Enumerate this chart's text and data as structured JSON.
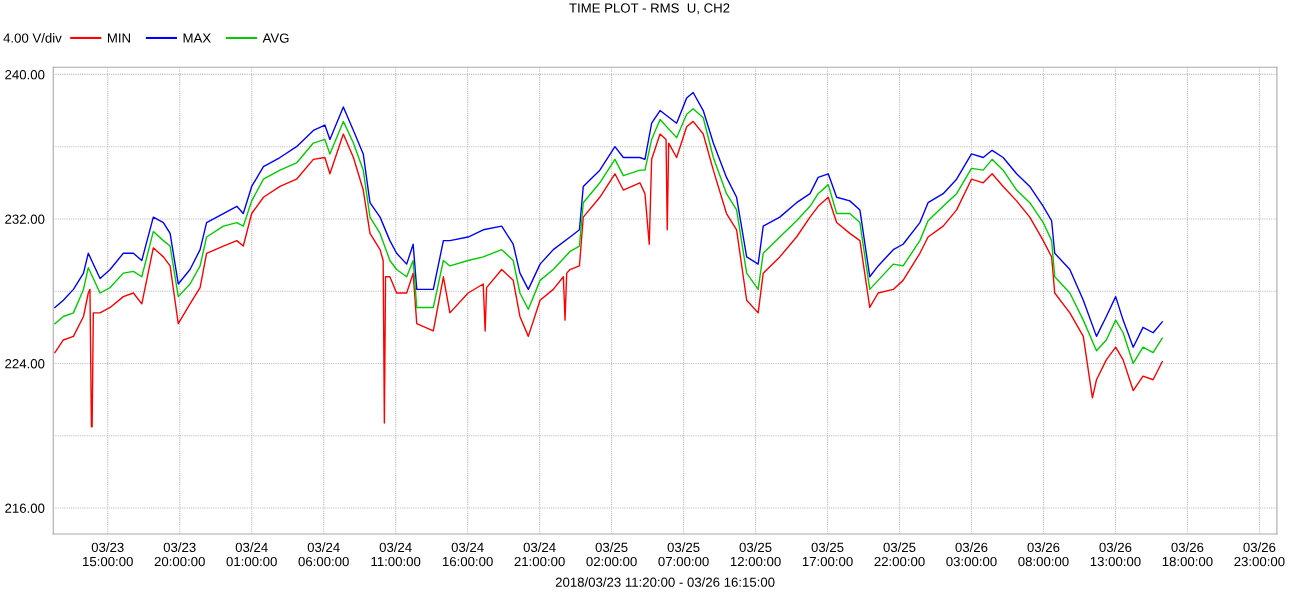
{
  "chart_data": {
    "type": "line",
    "title": "TIME PLOT - RMS  U, CH2",
    "xlabel": "2018/03/23 11:20:00 - 03/26 16:15:00",
    "annotations": [
      "4.00 V/div"
    ],
    "x": [
      "2018-03-23T11:20",
      "2018-03-23T11:55",
      "2018-03-23T12:37",
      "2018-03-23T13:19",
      "2018-03-23T13:39",
      "2018-03-23T14:28",
      "2018-03-23T15:10",
      "2018-03-23T16:05",
      "2018-03-23T16:47",
      "2018-03-23T17:22",
      "2018-03-23T18:10",
      "2018-03-23T18:52",
      "2018-03-23T19:20",
      "2018-03-23T19:54",
      "2018-03-23T20:43",
      "2018-03-23T21:25",
      "2018-03-23T21:52",
      "2018-03-23T23:02",
      "2018-03-23T23:58",
      "2018-03-24T00:25",
      "2018-03-24T01:00",
      "2018-03-24T01:49",
      "2018-03-24T02:58",
      "2018-03-24T04:07",
      "2018-03-24T05:17",
      "2018-03-24T06:05",
      "2018-03-24T06:26",
      "2018-03-24T07:22",
      "2018-03-24T08:04",
      "2018-03-24T08:45",
      "2018-03-24T09:13",
      "2018-03-24T09:55",
      "2018-03-24T10:36",
      "2018-03-24T11:04",
      "2018-03-24T11:46",
      "2018-03-24T12:13",
      "2018-03-24T12:28",
      "2018-03-24T13:37",
      "2018-03-24T14:19",
      "2018-03-24T14:46",
      "2018-03-24T16:02",
      "2018-03-24T17:05",
      "2018-03-24T18:22",
      "2018-03-24T19:10",
      "2018-03-24T19:38",
      "2018-03-24T20:13",
      "2018-03-24T21:02",
      "2018-03-24T21:57",
      "2018-03-24T23:07",
      "2018-03-24T23:46",
      "2018-03-25T00:02",
      "2018-03-25T01:11",
      "2018-03-25T02:14",
      "2018-03-25T02:49",
      "2018-03-25T03:58",
      "2018-03-25T04:19",
      "2018-03-25T04:47",
      "2018-03-25T05:22",
      "2018-03-25T06:31",
      "2018-03-25T07:13",
      "2018-03-25T07:40",
      "2018-03-25T08:22",
      "2018-03-25T09:04",
      "2018-03-25T09:59",
      "2018-03-25T10:41",
      "2018-03-25T11:23",
      "2018-03-25T12:11",
      "2018-03-25T12:32",
      "2018-03-25T13:41",
      "2018-03-25T14:51",
      "2018-03-25T15:47",
      "2018-03-25T16:21",
      "2018-03-25T17:03",
      "2018-03-25T17:38",
      "2018-03-25T18:33",
      "2018-03-25T19:15",
      "2018-03-25T19:56",
      "2018-03-25T20:31",
      "2018-03-25T21:34",
      "2018-03-25T22:15",
      "2018-03-25T23:25",
      "2018-03-25T23:59",
      "2018-03-26T01:02",
      "2018-03-26T01:58",
      "2018-03-26T03:00",
      "2018-03-26T03:49",
      "2018-03-26T04:26",
      "2018-03-26T05:12",
      "2018-03-26T06:08",
      "2018-03-26T07:03",
      "2018-03-26T07:59",
      "2018-03-26T08:34",
      "2018-03-26T08:47",
      "2018-03-26T09:50",
      "2018-03-26T10:46",
      "2018-03-26T11:41",
      "2018-03-26T12:22",
      "2018-03-26T13:01",
      "2018-03-26T13:32",
      "2018-03-26T14:14",
      "2018-03-26T14:55",
      "2018-03-26T15:37",
      "2018-03-26T16:15"
    ],
    "series": [
      {
        "name": "MIN",
        "color": "#ff0000",
        "x": [
          "2018-03-23T11:20",
          "2018-03-23T11:55",
          "2018-03-23T12:37",
          "2018-03-23T13:19",
          "2018-03-23T13:39",
          "2018-03-23T13:46",
          "2018-03-23T13:52",
          "2018-03-23T13:55",
          "2018-03-23T14:00",
          "2018-03-23T14:28",
          "2018-03-23T15:10",
          "2018-03-23T16:05",
          "2018-03-23T16:47",
          "2018-03-23T17:22",
          "2018-03-23T18:10",
          "2018-03-23T18:52",
          "2018-03-23T19:20",
          "2018-03-23T19:54",
          "2018-03-23T20:43",
          "2018-03-23T21:25",
          "2018-03-23T21:52",
          "2018-03-23T23:02",
          "2018-03-23T23:58",
          "2018-03-24T00:25",
          "2018-03-24T01:00",
          "2018-03-24T01:49",
          "2018-03-24T02:58",
          "2018-03-24T04:07",
          "2018-03-24T05:17",
          "2018-03-24T06:05",
          "2018-03-24T06:26",
          "2018-03-24T07:22",
          "2018-03-24T08:04",
          "2018-03-24T08:45",
          "2018-03-24T09:13",
          "2018-03-24T09:55",
          "2018-03-24T10:08",
          "2018-03-24T10:13",
          "2018-03-24T10:18",
          "2018-03-24T10:36",
          "2018-03-24T11:04",
          "2018-03-24T11:46",
          "2018-03-24T12:13",
          "2018-03-24T12:28",
          "2018-03-24T13:37",
          "2018-03-24T14:19",
          "2018-03-24T14:46",
          "2018-03-24T16:02",
          "2018-03-24T17:05",
          "2018-03-24T17:13",
          "2018-03-24T17:19",
          "2018-03-24T18:22",
          "2018-03-24T19:10",
          "2018-03-24T19:38",
          "2018-03-24T20:13",
          "2018-03-24T21:02",
          "2018-03-24T21:57",
          "2018-03-24T22:39",
          "2018-03-24T22:46",
          "2018-03-24T22:53",
          "2018-03-24T23:07",
          "2018-03-24T23:46",
          "2018-03-25T00:02",
          "2018-03-25T01:11",
          "2018-03-25T02:14",
          "2018-03-25T02:49",
          "2018-03-25T03:58",
          "2018-03-25T04:19",
          "2018-03-25T04:37",
          "2018-03-25T04:47",
          "2018-03-25T05:22",
          "2018-03-25T05:47",
          "2018-03-25T05:52",
          "2018-03-25T05:58",
          "2018-03-25T06:31",
          "2018-03-25T07:13",
          "2018-03-25T07:40",
          "2018-03-25T08:22",
          "2018-03-25T09:04",
          "2018-03-25T09:59",
          "2018-03-25T10:41",
          "2018-03-25T11:23",
          "2018-03-25T12:11",
          "2018-03-25T12:32",
          "2018-03-25T13:41",
          "2018-03-25T14:51",
          "2018-03-25T15:47",
          "2018-03-25T16:21",
          "2018-03-25T17:03",
          "2018-03-25T17:38",
          "2018-03-25T18:33",
          "2018-03-25T19:15",
          "2018-03-25T19:56",
          "2018-03-25T20:31",
          "2018-03-25T21:34",
          "2018-03-25T22:15",
          "2018-03-25T23:25",
          "2018-03-25T23:59",
          "2018-03-26T01:02",
          "2018-03-26T01:58",
          "2018-03-26T03:00",
          "2018-03-26T03:49",
          "2018-03-26T04:26",
          "2018-03-26T05:12",
          "2018-03-26T06:08",
          "2018-03-26T07:03",
          "2018-03-26T07:59",
          "2018-03-26T08:34",
          "2018-03-26T08:47",
          "2018-03-26T09:50",
          "2018-03-26T10:46",
          "2018-03-26T11:24",
          "2018-03-26T11:41",
          "2018-03-26T12:22",
          "2018-03-26T13:01",
          "2018-03-26T13:32",
          "2018-03-26T14:14",
          "2018-03-26T14:55",
          "2018-03-26T15:37",
          "2018-03-26T16:15"
        ],
        "values": [
          224.6,
          225.3,
          225.5,
          226.6,
          227.9,
          228.1,
          220.5,
          220.5,
          226.8,
          226.8,
          227.1,
          227.7,
          227.9,
          227.3,
          230.4,
          229.9,
          229.4,
          226.2,
          227.3,
          228.2,
          230.1,
          230.5,
          230.8,
          230.5,
          232.3,
          233.2,
          233.8,
          234.2,
          235.3,
          235.4,
          234.5,
          236.7,
          235.4,
          233.6,
          231.2,
          230.3,
          229.7,
          220.7,
          228.8,
          228.8,
          227.9,
          227.9,
          229.0,
          226.2,
          225.8,
          228.8,
          226.8,
          227.9,
          228.4,
          225.8,
          228.2,
          229.2,
          228.6,
          226.6,
          225.5,
          227.5,
          228.1,
          228.8,
          226.4,
          229.0,
          229.2,
          229.4,
          232.1,
          233.2,
          234.5,
          233.6,
          234.0,
          233.4,
          230.6,
          235.3,
          236.7,
          236.4,
          231.4,
          236.2,
          235.4,
          237.1,
          237.4,
          236.7,
          234.7,
          232.3,
          231.4,
          227.5,
          226.8,
          229.0,
          229.9,
          231.0,
          232.1,
          232.7,
          233.2,
          231.8,
          231.2,
          230.8,
          227.1,
          227.9,
          228.1,
          228.6,
          230.1,
          231.0,
          231.6,
          232.5,
          234.2,
          234.0,
          234.5,
          233.8,
          233.0,
          232.1,
          230.8,
          229.9,
          227.9,
          226.8,
          225.5,
          222.1,
          223.1,
          224.2,
          224.9,
          224.2,
          222.5,
          223.3,
          223.1,
          224.1
        ]
      },
      {
        "name": "MAX",
        "color": "#0000ff",
        "values": [
          227.1,
          227.5,
          228.1,
          229.0,
          230.1,
          228.7,
          229.2,
          230.1,
          230.1,
          229.7,
          232.1,
          231.8,
          231.2,
          228.4,
          229.2,
          230.3,
          231.8,
          232.3,
          232.7,
          232.3,
          233.8,
          234.9,
          235.4,
          236.0,
          236.9,
          237.2,
          236.4,
          238.2,
          236.9,
          235.6,
          232.9,
          232.1,
          230.8,
          230.1,
          229.5,
          230.6,
          228.1,
          228.1,
          230.8,
          230.8,
          231.0,
          231.4,
          231.6,
          230.6,
          229.0,
          228.1,
          229.5,
          230.3,
          231.0,
          231.4,
          233.8,
          234.7,
          236.0,
          235.4,
          235.4,
          235.3,
          237.3,
          238.0,
          237.3,
          238.7,
          239.0,
          238.0,
          236.2,
          234.3,
          233.2,
          229.9,
          229.5,
          231.6,
          232.1,
          232.9,
          233.4,
          234.3,
          234.5,
          233.2,
          233.0,
          232.5,
          228.8,
          229.4,
          230.3,
          230.6,
          231.8,
          232.9,
          233.4,
          234.2,
          235.6,
          235.4,
          235.8,
          235.4,
          234.5,
          233.8,
          232.7,
          231.9,
          230.1,
          229.2,
          227.5,
          225.5,
          226.6,
          227.7,
          226.4,
          224.9,
          226.0,
          225.7,
          226.3
        ]
      },
      {
        "name": "AVG",
        "color": "#00cc00",
        "values": [
          226.2,
          226.6,
          226.8,
          228.1,
          229.3,
          227.9,
          228.2,
          229.0,
          229.1,
          228.8,
          231.3,
          230.8,
          230.5,
          227.7,
          228.4,
          229.4,
          231.0,
          231.6,
          231.8,
          231.6,
          233.0,
          234.2,
          234.7,
          235.1,
          236.2,
          236.4,
          235.6,
          237.4,
          236.2,
          234.7,
          232.1,
          231.2,
          229.7,
          229.2,
          228.8,
          229.7,
          227.1,
          227.1,
          229.7,
          229.4,
          229.7,
          229.9,
          230.3,
          229.7,
          227.9,
          227.0,
          228.6,
          229.2,
          230.2,
          230.5,
          232.9,
          234.0,
          235.3,
          234.4,
          234.7,
          234.7,
          236.4,
          237.5,
          236.5,
          237.8,
          238.1,
          237.6,
          235.4,
          233.4,
          232.5,
          229.0,
          228.1,
          230.1,
          231.0,
          231.9,
          232.7,
          233.4,
          233.9,
          232.3,
          232.3,
          231.8,
          228.1,
          228.6,
          229.5,
          229.4,
          230.8,
          231.9,
          232.7,
          233.4,
          234.8,
          234.7,
          235.3,
          234.7,
          233.6,
          232.9,
          231.8,
          230.8,
          228.8,
          227.9,
          226.4,
          224.7,
          225.3,
          226.4,
          225.7,
          224.0,
          224.9,
          224.6,
          225.4
        ]
      }
    ],
    "xlim": [
      "2018-03-23T11:13",
      "2018-03-27T00:13"
    ],
    "xticks": [
      {
        "value": "2018-03-23T15:00",
        "label": "03/23\n15:00:00"
      },
      {
        "value": "2018-03-23T20:00",
        "label": "03/23\n20:00:00"
      },
      {
        "value": "2018-03-24T01:00",
        "label": "03/24\n01:00:00"
      },
      {
        "value": "2018-03-24T06:00",
        "label": "03/24\n06:00:00"
      },
      {
        "value": "2018-03-24T11:00",
        "label": "03/24\n11:00:00"
      },
      {
        "value": "2018-03-24T16:00",
        "label": "03/24\n16:00:00"
      },
      {
        "value": "2018-03-24T21:00",
        "label": "03/24\n21:00:00"
      },
      {
        "value": "2018-03-25T02:00",
        "label": "03/25\n02:00:00"
      },
      {
        "value": "2018-03-25T07:00",
        "label": "03/25\n07:00:00"
      },
      {
        "value": "2018-03-25T12:00",
        "label": "03/25\n12:00:00"
      },
      {
        "value": "2018-03-25T17:00",
        "label": "03/25\n17:00:00"
      },
      {
        "value": "2018-03-25T22:00",
        "label": "03/25\n22:00:00"
      },
      {
        "value": "2018-03-26T03:00",
        "label": "03/26\n03:00:00"
      },
      {
        "value": "2018-03-26T08:00",
        "label": "03/26\n08:00:00"
      },
      {
        "value": "2018-03-26T13:00",
        "label": "03/26\n13:00:00"
      },
      {
        "value": "2018-03-26T18:00",
        "label": "03/26\n18:00:00"
      },
      {
        "value": "2018-03-26T23:00",
        "label": "03/26\n23:00:00"
      }
    ],
    "ylim": [
      214.56,
      240.4
    ],
    "yticks": [
      {
        "value": 216,
        "label": "216.00"
      },
      {
        "value": 220,
        "label": null
      },
      {
        "value": 224,
        "label": "224.00"
      },
      {
        "value": 228,
        "label": null
      },
      {
        "value": 232,
        "label": "232.00"
      },
      {
        "value": 236,
        "label": null
      },
      {
        "value": 240,
        "label": "240.00"
      }
    ],
    "grid": true,
    "legend": "top left",
    "marker": "none",
    "line_style": "solid"
  }
}
